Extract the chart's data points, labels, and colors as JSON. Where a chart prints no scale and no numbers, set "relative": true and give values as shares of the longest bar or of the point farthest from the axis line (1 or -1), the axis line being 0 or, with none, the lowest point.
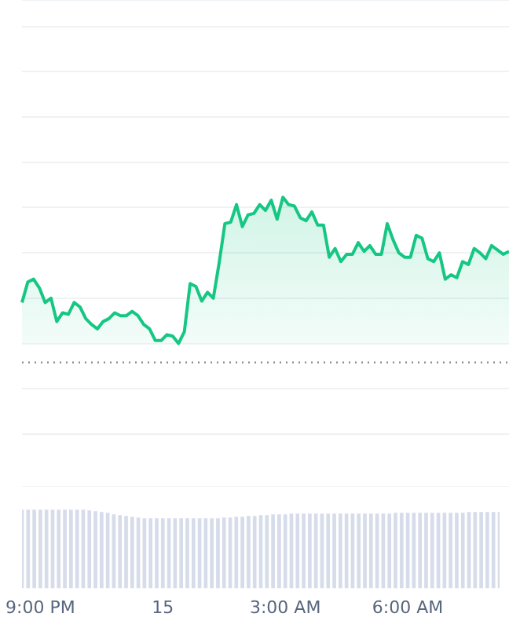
{
  "chart_data": [
    {
      "type": "area",
      "relative": true,
      "color": "#16c784",
      "grid": "y",
      "legend": false,
      "tick_labels": false,
      "ref_lines": [
        {
          "axis": "y",
          "value": -0.13,
          "color": "#8a8f98",
          "line_style": "dotted"
        }
      ],
      "categories": [
        null,
        null,
        null,
        null,
        null,
        null,
        null,
        null,
        null,
        null,
        null,
        null,
        null,
        null,
        null,
        null,
        null,
        null,
        null,
        null,
        null,
        null,
        null,
        null,
        null,
        null,
        null,
        null,
        null,
        null,
        null,
        null,
        null,
        null,
        null,
        null,
        null,
        null,
        null,
        null,
        null,
        null,
        null,
        null,
        null,
        null,
        null,
        null,
        null,
        null,
        null,
        null,
        null,
        null,
        null,
        null,
        null,
        null,
        null,
        null,
        null,
        null,
        null,
        null,
        null,
        null,
        null,
        null,
        null,
        null,
        null,
        null,
        null,
        null,
        null,
        null,
        null,
        null,
        null,
        null,
        null,
        null,
        null,
        null,
        null
      ],
      "values": [
        0.28,
        0.42,
        0.44,
        0.38,
        0.28,
        0.31,
        0.15,
        0.21,
        0.2,
        0.28,
        0.25,
        0.17,
        0.13,
        0.1,
        0.15,
        0.17,
        0.21,
        0.19,
        0.19,
        0.22,
        0.19,
        0.13,
        0.1,
        0.02,
        0.02,
        0.06,
        0.05,
        0,
        0.08,
        0.41,
        0.39,
        0.29,
        0.35,
        0.31,
        0.55,
        0.82,
        0.83,
        0.95,
        0.8,
        0.88,
        0.89,
        0.95,
        0.91,
        0.98,
        0.85,
        1,
        0.95,
        0.94,
        0.86,
        0.84,
        0.9,
        0.81,
        0.81,
        0.59,
        0.65,
        0.56,
        0.61,
        0.61,
        0.69,
        0.63,
        0.67,
        0.61,
        0.61,
        0.82,
        0.71,
        0.62,
        0.59,
        0.59,
        0.74,
        0.72,
        0.58,
        0.56,
        0.62,
        0.44,
        0.47,
        0.45,
        0.56,
        0.54,
        0.65,
        0.62,
        0.58,
        0.67,
        0.64,
        0.61,
        0.63
      ]
    },
    {
      "type": "bar",
      "relative": true,
      "color": "#d6dcea",
      "legend": false,
      "tick_labels": "x",
      "categories": [
        null,
        null,
        null,
        "9:00 PM",
        null,
        null,
        null,
        null,
        null,
        null,
        null,
        null,
        null,
        null,
        null,
        null,
        null,
        null,
        null,
        null,
        null,
        null,
        null,
        "15",
        null,
        null,
        null,
        null,
        null,
        null,
        null,
        null,
        null,
        null,
        null,
        null,
        null,
        null,
        null,
        null,
        null,
        null,
        null,
        "3:00 AM",
        null,
        null,
        null,
        null,
        null,
        null,
        null,
        null,
        null,
        null,
        null,
        null,
        null,
        null,
        null,
        null,
        null,
        null,
        null,
        "6:00 AM",
        null,
        null,
        null,
        null,
        null,
        null,
        null,
        null,
        null,
        null,
        null,
        null,
        null,
        null,
        null
      ],
      "values": [
        1,
        1,
        1,
        1,
        1,
        1,
        1,
        1,
        1,
        1,
        1,
        0.99,
        0.98,
        0.97,
        0.96,
        0.94,
        0.93,
        0.92,
        0.91,
        0.9,
        0.89,
        0.89,
        0.89,
        0.89,
        0.89,
        0.89,
        0.89,
        0.89,
        0.89,
        0.89,
        0.89,
        0.89,
        0.89,
        0.9,
        0.9,
        0.91,
        0.91,
        0.92,
        0.92,
        0.93,
        0.93,
        0.94,
        0.94,
        0.94,
        0.95,
        0.95,
        0.95,
        0.95,
        0.95,
        0.95,
        0.95,
        0.95,
        0.95,
        0.95,
        0.95,
        0.95,
        0.95,
        0.95,
        0.95,
        0.95,
        0.95,
        0.96,
        0.96,
        0.96,
        0.96,
        0.96,
        0.96,
        0.96,
        0.96,
        0.96,
        0.96,
        0.96,
        0.96,
        0.97,
        0.97,
        0.97,
        0.97,
        0.97,
        0.97
      ]
    }
  ]
}
